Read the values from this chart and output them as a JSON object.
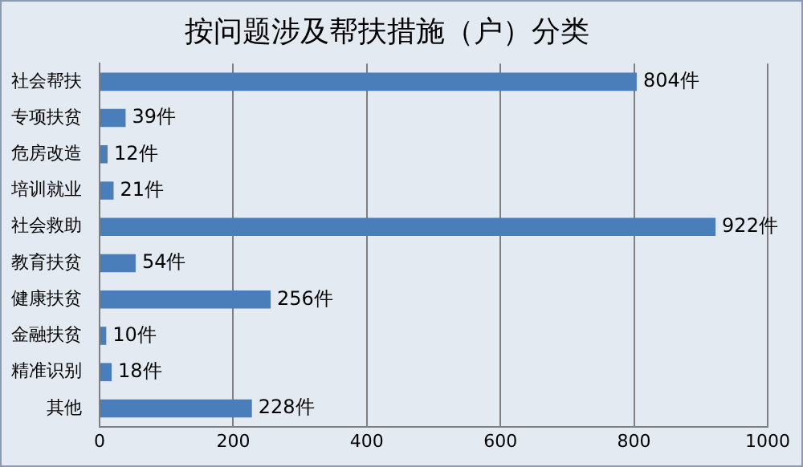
{
  "chart_data": {
    "type": "bar",
    "orientation": "horizontal",
    "title": "按问题涉及帮扶措施（户）分类",
    "categories": [
      "社会帮扶",
      "专项扶贫",
      "危房改造",
      "培训就业",
      "社会救助",
      "教育扶贫",
      "健康扶贫",
      "金融扶贫",
      "精准识别",
      "其他"
    ],
    "values": [
      804,
      39,
      12,
      21,
      922,
      54,
      256,
      10,
      18,
      228
    ],
    "value_labels": [
      "804件",
      "39件",
      "12件",
      "21件",
      "922件",
      "54件",
      "256件",
      "10件",
      "18件",
      "228件"
    ],
    "color": "#4a7ebb",
    "xlim": [
      0,
      1000
    ],
    "xticks": [
      0,
      200,
      400,
      600,
      800,
      1000
    ],
    "grid": "x",
    "legend": false
  }
}
